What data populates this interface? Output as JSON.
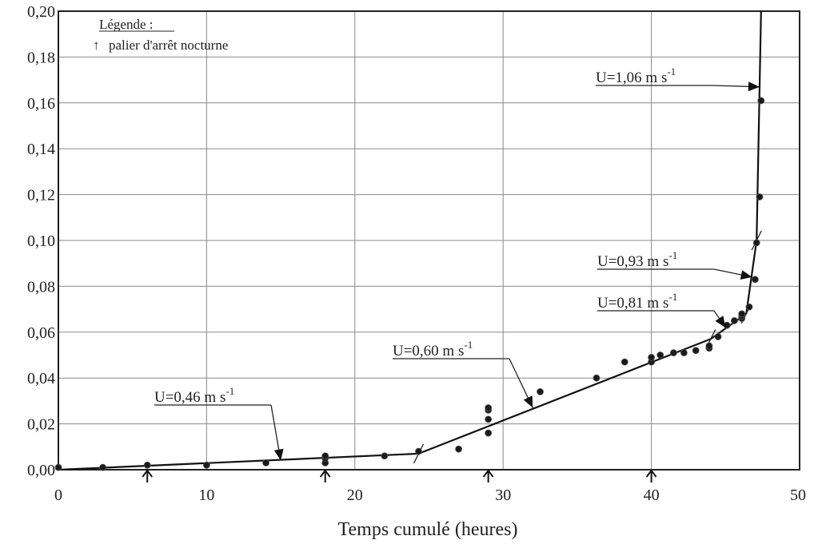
{
  "chart_data": {
    "type": "scatter",
    "xlabel": "Temps cumulé (heures)",
    "ylabel": "",
    "xlim": [
      0,
      50
    ],
    "ylim": [
      0,
      0.2
    ],
    "x_ticks": [
      0,
      10,
      20,
      30,
      40,
      50
    ],
    "x_tick_labels": [
      "0",
      "10",
      "20",
      "30",
      "40",
      "50"
    ],
    "y_ticks": [
      0,
      0.02,
      0.04,
      0.06,
      0.08,
      0.1,
      0.12,
      0.14,
      0.16,
      0.18,
      0.2
    ],
    "y_tick_labels": [
      "0,00",
      "0,02",
      "0,04",
      "0,06",
      "0,08",
      "0,10",
      "0,12",
      "0,14",
      "0,16",
      "0,18",
      "0,20"
    ],
    "grid": true,
    "legend": {
      "title": "Légende :",
      "entries": [
        {
          "symbol": "↑",
          "label": "palier d'arrêt nocturne"
        }
      ],
      "position": "top-left"
    },
    "night_stop_markers_x": [
      6,
      18,
      29,
      40
    ],
    "points": [
      {
        "x": 0,
        "y": 0.001
      },
      {
        "x": 3,
        "y": 0.001
      },
      {
        "x": 6,
        "y": 0.002
      },
      {
        "x": 10,
        "y": 0.002
      },
      {
        "x": 14,
        "y": 0.003
      },
      {
        "x": 18,
        "y": 0.003
      },
      {
        "x": 18,
        "y": 0.005
      },
      {
        "x": 18,
        "y": 0.006
      },
      {
        "x": 22,
        "y": 0.006
      },
      {
        "x": 24.3,
        "y": 0.008
      },
      {
        "x": 27,
        "y": 0.009
      },
      {
        "x": 29,
        "y": 0.016
      },
      {
        "x": 29,
        "y": 0.022
      },
      {
        "x": 29,
        "y": 0.026
      },
      {
        "x": 29,
        "y": 0.027
      },
      {
        "x": 32.5,
        "y": 0.034
      },
      {
        "x": 36.3,
        "y": 0.04
      },
      {
        "x": 38.2,
        "y": 0.047
      },
      {
        "x": 40,
        "y": 0.047
      },
      {
        "x": 40,
        "y": 0.049
      },
      {
        "x": 40.6,
        "y": 0.05
      },
      {
        "x": 41.5,
        "y": 0.051
      },
      {
        "x": 42.2,
        "y": 0.051
      },
      {
        "x": 43,
        "y": 0.052
      },
      {
        "x": 43.9,
        "y": 0.053
      },
      {
        "x": 43.9,
        "y": 0.054
      },
      {
        "x": 44.5,
        "y": 0.058
      },
      {
        "x": 45.1,
        "y": 0.063
      },
      {
        "x": 45.6,
        "y": 0.065
      },
      {
        "x": 46.1,
        "y": 0.066
      },
      {
        "x": 46.1,
        "y": 0.067
      },
      {
        "x": 46.1,
        "y": 0.068
      },
      {
        "x": 46.6,
        "y": 0.071
      },
      {
        "x": 47,
        "y": 0.083
      },
      {
        "x": 47.1,
        "y": 0.099
      },
      {
        "x": 47.3,
        "y": 0.119
      },
      {
        "x": 47.4,
        "y": 0.161
      }
    ],
    "fit_segments": [
      {
        "x": [
          0,
          24.3
        ],
        "y": [
          0.0,
          0.007
        ]
      },
      {
        "x": [
          24.3,
          44.0
        ],
        "y": [
          0.007,
          0.057
        ]
      },
      {
        "x": [
          44.0,
          46.4
        ],
        "y": [
          0.057,
          0.068
        ]
      },
      {
        "x": [
          46.4,
          47.1
        ],
        "y": [
          0.068,
          0.1
        ]
      },
      {
        "x": [
          47.1,
          47.4
        ],
        "y": [
          0.1,
          0.2
        ]
      }
    ],
    "annotations": [
      {
        "text": "U=0,46 m s-1",
        "base": "U=0,46 m s",
        "sup": "-1",
        "target": {
          "x": 15,
          "y": 0.004
        }
      },
      {
        "text": "U=0,60 m s-1",
        "base": "U=0,60 m s",
        "sup": "-1",
        "target": {
          "x": 32.0,
          "y": 0.027
        }
      },
      {
        "text": "U=0,81 m s-1",
        "base": "U=0,81 m s",
        "sup": "-1",
        "target": {
          "x": 45.0,
          "y": 0.062
        }
      },
      {
        "text": "U=0,93 m s-1",
        "base": "U=0,93 m s",
        "sup": "-1",
        "target": {
          "x": 46.8,
          "y": 0.084
        }
      },
      {
        "text": "U=1,06 m s-1",
        "base": "U=1,06 m s",
        "sup": "-1",
        "target": {
          "x": 47.3,
          "y": 0.167
        }
      }
    ]
  }
}
